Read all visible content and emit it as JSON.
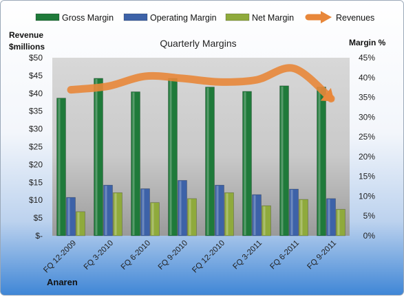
{
  "chart_data": {
    "type": "bar",
    "title": "Quarterly Margins",
    "left_axis_label": [
      "Revenue",
      "$millions"
    ],
    "right_axis_label": "Margin %",
    "footer_label": "Anaren",
    "categories": [
      "FQ 12-2009",
      "FQ 3-2010",
      "FQ 6-2010",
      "FQ 9-2010",
      "FQ 12-2010",
      "FQ 3-2011",
      "FQ 6-2011",
      "FQ 9-2011"
    ],
    "left_axis": {
      "ylim": [
        0,
        50
      ],
      "ticks": [
        "$-",
        "$5",
        "$10",
        "$15",
        "$20",
        "$25",
        "$30",
        "$35",
        "$40",
        "$45",
        "$50"
      ],
      "tick_values": [
        0,
        5,
        10,
        15,
        20,
        25,
        30,
        35,
        40,
        45,
        50
      ]
    },
    "right_axis": {
      "ylim": [
        0,
        45
      ],
      "ticks": [
        "0%",
        "5%",
        "10%",
        "15%",
        "20%",
        "25%",
        "30%",
        "35%",
        "40%",
        "45%"
      ],
      "tick_values": [
        0,
        5,
        10,
        15,
        20,
        25,
        30,
        35,
        40,
        45
      ]
    },
    "series": [
      {
        "name": "Gross Margin",
        "axis": "right",
        "kind": "bar",
        "color": "#1f7a3a",
        "values": [
          34.8,
          39.8,
          36.4,
          39.8,
          37.6,
          36.5,
          37.9,
          37.6
        ]
      },
      {
        "name": "Operating Margin",
        "axis": "right",
        "kind": "bar",
        "color": "#3d62a8",
        "values": [
          9.7,
          12.8,
          11.9,
          14.0,
          12.8,
          10.4,
          11.8,
          9.4
        ]
      },
      {
        "name": "Net Margin",
        "axis": "right",
        "kind": "bar",
        "color": "#8faa3c",
        "values": [
          6.1,
          10.9,
          8.4,
          9.4,
          10.9,
          7.6,
          9.2,
          6.7
        ]
      },
      {
        "name": "Revenues",
        "axis": "left",
        "kind": "line",
        "color": "#e8873a",
        "values": [
          41.0,
          42.0,
          44.8,
          44.2,
          43.2,
          43.8,
          47.0,
          38.5
        ]
      }
    ],
    "legend_position": "top",
    "grid": false
  }
}
